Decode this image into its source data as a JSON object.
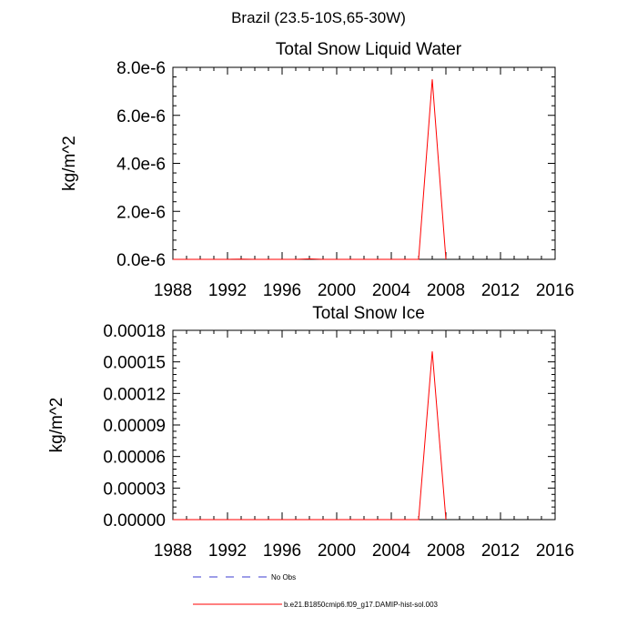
{
  "figure": {
    "title": "Brazil (23.5-10S,65-30W)"
  },
  "chart_data": [
    {
      "type": "line",
      "title": "Total Snow Liquid Water",
      "xlabel": "",
      "ylabel": "kg/m^2",
      "xlim": [
        1988,
        2016
      ],
      "ylim": [
        0,
        8e-06
      ],
      "xticks": [
        1988,
        1992,
        1996,
        2000,
        2004,
        2008,
        2012,
        2016
      ],
      "xtick_labels": [
        "1988",
        "1992",
        "1996",
        "2000",
        "2004",
        "2008",
        "2012",
        "2016"
      ],
      "yticks": [
        0,
        2e-06,
        4e-06,
        6e-06,
        8e-06
      ],
      "ytick_labels": [
        "0.0e-6",
        "2.0e-6",
        "4.0e-6",
        "6.0e-6",
        "8.0e-6"
      ],
      "series": [
        {
          "name": "b.e21.B1850cmip6.f09_g17.DAMIP-hist-sol.003",
          "color": "#ff0000",
          "x": [
            1988,
            1989,
            1990,
            1991,
            1992,
            1993,
            1994,
            1995,
            1996,
            1997,
            1998,
            1999,
            2000,
            2001,
            2002,
            2003,
            2004,
            2005,
            2006,
            2007,
            2008
          ],
          "y": [
            0,
            0,
            0,
            0,
            0,
            1e-08,
            0,
            0,
            0,
            0,
            2e-08,
            0,
            0,
            0,
            0,
            0,
            0,
            0,
            0,
            7.5e-06,
            0
          ]
        }
      ]
    },
    {
      "type": "line",
      "title": "Total Snow Ice",
      "xlabel": "",
      "ylabel": "kg/m^2",
      "xlim": [
        1988,
        2016
      ],
      "ylim": [
        0,
        0.00018
      ],
      "xticks": [
        1988,
        1992,
        1996,
        2000,
        2004,
        2008,
        2012,
        2016
      ],
      "xtick_labels": [
        "1988",
        "1992",
        "1996",
        "2000",
        "2004",
        "2008",
        "2012",
        "2016"
      ],
      "yticks": [
        0,
        3e-05,
        6e-05,
        9e-05,
        0.00012,
        0.00015,
        0.00018
      ],
      "ytick_labels": [
        "0.00000",
        "0.00003",
        "0.00006",
        "0.00009",
        "0.00012",
        "0.00015",
        "0.00018"
      ],
      "series": [
        {
          "name": "b.e21.B1850cmip6.f09_g17.DAMIP-hist-sol.003",
          "color": "#ff0000",
          "x": [
            1988,
            1989,
            1990,
            1991,
            1992,
            1993,
            1994,
            1995,
            1996,
            1997,
            1998,
            1999,
            2000,
            2001,
            2002,
            2003,
            2004,
            2005,
            2006,
            2007,
            2008
          ],
          "y": [
            0,
            0,
            0,
            0,
            0,
            0,
            0,
            0,
            0,
            0,
            0,
            0,
            0,
            0,
            0,
            0,
            0,
            0,
            0,
            0.00016,
            0
          ]
        }
      ]
    }
  ],
  "legend": {
    "entries": [
      {
        "label": "No Obs",
        "color": "#3b3bd0",
        "style": "dashed"
      },
      {
        "label": "b.e21.B1850cmip6.f09_g17.DAMIP-hist-sol.003",
        "color": "#ff0000",
        "style": "solid"
      }
    ]
  }
}
